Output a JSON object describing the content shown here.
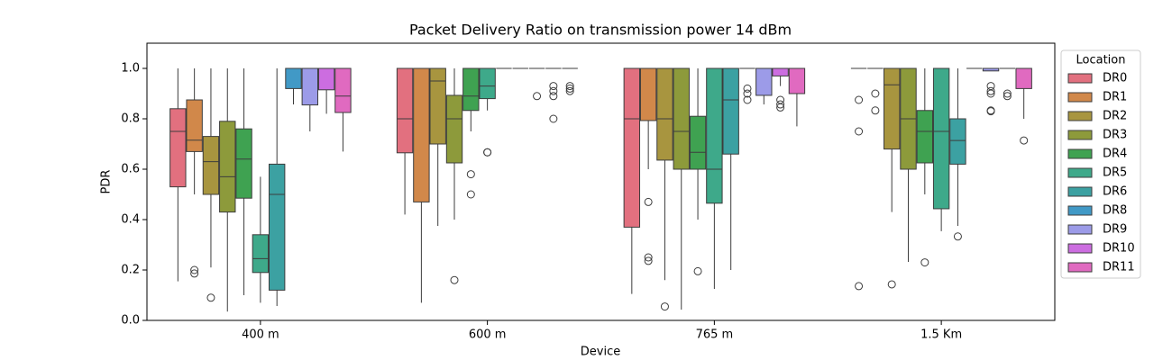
{
  "chart_data": {
    "type": "box",
    "title": "Packet Delivery Ratio on transmission power 14 dBm",
    "x_label": "Device",
    "y_label": "PDR",
    "legend_title": "Location",
    "legend_position": "right",
    "categories": [
      "400 m",
      "600 m",
      "765 m",
      "1.5 Km"
    ],
    "ylim": [
      0,
      1.1
    ],
    "yticks": [
      {
        "value": 0,
        "label": "0.0"
      },
      {
        "value": 0.2,
        "label": "0.2"
      },
      {
        "value": 0.4,
        "label": "0.4"
      },
      {
        "value": 0.6,
        "label": "0.6"
      },
      {
        "value": 0.8,
        "label": "0.8"
      },
      {
        "value": 1,
        "label": "1.0"
      }
    ],
    "series": [
      {
        "name": "DR0",
        "color": "#e2707f",
        "whislo": [
          0.155,
          0.42,
          0.105,
          1
        ],
        "q1": [
          0.53,
          0.665,
          0.37,
          1
        ],
        "med": [
          0.75,
          0.8,
          0.8,
          1
        ],
        "q3": [
          0.84,
          1,
          1,
          1
        ],
        "whishi": [
          1,
          1,
          1,
          1
        ],
        "fliers": [
          [],
          [],
          [],
          [
            0.875,
            0.75,
            0.136
          ]
        ]
      },
      {
        "name": "DR1",
        "color": "#d1884a",
        "whislo": [
          0.5,
          0.07,
          0.6,
          1
        ],
        "q1": [
          0.67,
          0.47,
          0.793,
          1
        ],
        "med": [
          0.715,
          1,
          1,
          1
        ],
        "q3": [
          0.875,
          1,
          1,
          1
        ],
        "whishi": [
          1,
          1,
          1,
          1
        ],
        "fliers": [
          [
            0.2,
            0.186
          ],
          [],
          [
            0.47,
            0.25,
            0.236
          ],
          [
            0.9,
            0.833
          ]
        ]
      },
      {
        "name": "DR2",
        "color": "#a8953f",
        "whislo": [
          0.21,
          0.375,
          0.16,
          0.43
        ],
        "q1": [
          0.5,
          0.7,
          0.636,
          0.68
        ],
        "med": [
          0.63,
          0.95,
          0.8,
          0.935
        ],
        "q3": [
          0.73,
          1,
          1,
          1
        ],
        "whishi": [
          1,
          1,
          1,
          1
        ],
        "fliers": [
          [
            0.09
          ],
          [],
          [
            0.055
          ],
          [
            0.143
          ]
        ]
      },
      {
        "name": "DR3",
        "color": "#8d9a3b",
        "whislo": [
          0.035,
          0.4,
          0.043,
          0.232
        ],
        "q1": [
          0.43,
          0.625,
          0.6,
          0.6
        ],
        "med": [
          0.57,
          0.8,
          0.75,
          0.8
        ],
        "q3": [
          0.79,
          0.893,
          1,
          1
        ],
        "whishi": [
          1,
          1,
          1,
          1
        ],
        "fliers": [
          [],
          [
            0.16
          ],
          [],
          []
        ]
      },
      {
        "name": "DR4",
        "color": "#3fa251",
        "whislo": [
          0.1,
          0.75,
          0.4,
          0.5
        ],
        "q1": [
          0.485,
          0.833,
          0.6,
          0.625
        ],
        "med": [
          0.64,
          0.89,
          0.667,
          0.75
        ],
        "q3": [
          0.76,
          1,
          0.81,
          0.833
        ],
        "whishi": [
          1,
          1,
          1,
          1
        ],
        "fliers": [
          [],
          [
            0.58,
            0.5
          ],
          [
            0.195
          ],
          [
            0.23
          ]
        ]
      },
      {
        "name": "DR5",
        "color": "#3ea98a",
        "whislo": [
          0.07,
          0.833,
          0.125,
          0.354
        ],
        "q1": [
          0.19,
          0.88,
          0.465,
          0.443
        ],
        "med": [
          0.245,
          0.93,
          0.6,
          0.75
        ],
        "q3": [
          0.34,
          1,
          1,
          1
        ],
        "whishi": [
          0.57,
          1,
          1,
          1
        ],
        "fliers": [
          [],
          [
            0.667,
            0.667
          ],
          [],
          []
        ]
      },
      {
        "name": "DR6",
        "color": "#3ca1a2",
        "whislo": [
          0.057,
          1,
          0.2,
          0.375
        ],
        "q1": [
          0.12,
          1,
          0.66,
          0.62
        ],
        "med": [
          0.5,
          1,
          0.875,
          0.714
        ],
        "q3": [
          0.62,
          1,
          1,
          0.8
        ],
        "whishi": [
          1,
          1,
          1,
          1
        ],
        "fliers": [
          [],
          [],
          [],
          [
            0.333
          ]
        ]
      },
      {
        "name": "DR8",
        "color": "#4199c6",
        "whislo": [
          0.857,
          1,
          1,
          1
        ],
        "q1": [
          0.92,
          1,
          1,
          1
        ],
        "med": [
          1,
          1,
          1,
          1
        ],
        "q3": [
          1,
          1,
          1,
          1
        ],
        "whishi": [
          1,
          1,
          1,
          1
        ],
        "fliers": [
          [],
          [],
          [
            0.875,
            0.9,
            0.92
          ],
          []
        ]
      },
      {
        "name": "DR9",
        "color": "#9c9be8",
        "whislo": [
          0.75,
          1,
          0.857,
          0.99
        ],
        "q1": [
          0.855,
          1,
          0.893,
          0.99
        ],
        "med": [
          1,
          1,
          1,
          1
        ],
        "q3": [
          1,
          1,
          1,
          1
        ],
        "whishi": [
          1,
          1,
          1,
          1
        ],
        "fliers": [
          [],
          [
            0.89
          ],
          [],
          [
            0.93,
            0.91,
            0.9,
            0.833,
            0.83
          ]
        ]
      },
      {
        "name": "DR10",
        "color": "#cc6de0",
        "whislo": [
          0.82,
          1,
          0.93,
          1
        ],
        "q1": [
          0.915,
          1,
          0.97,
          1
        ],
        "med": [
          1,
          1,
          1,
          1
        ],
        "q3": [
          1,
          1,
          1,
          1
        ],
        "whishi": [
          1,
          1,
          1,
          1
        ],
        "fliers": [
          [],
          [
            0.8,
            0.89,
            0.91,
            0.93
          ],
          [
            0.875,
            0.857,
            0.845
          ],
          [
            0.9,
            0.89
          ]
        ]
      },
      {
        "name": "DR11",
        "color": "#e06ac0",
        "whislo": [
          0.67,
          1,
          0.77,
          0.8
        ],
        "q1": [
          0.825,
          1,
          0.9,
          0.92
        ],
        "med": [
          0.89,
          1,
          1,
          1
        ],
        "q3": [
          1,
          1,
          1,
          1
        ],
        "whishi": [
          1,
          1,
          1,
          1
        ],
        "fliers": [
          [],
          [
            0.91,
            0.92,
            0.93
          ],
          [],
          [
            0.714
          ]
        ]
      }
    ]
  }
}
